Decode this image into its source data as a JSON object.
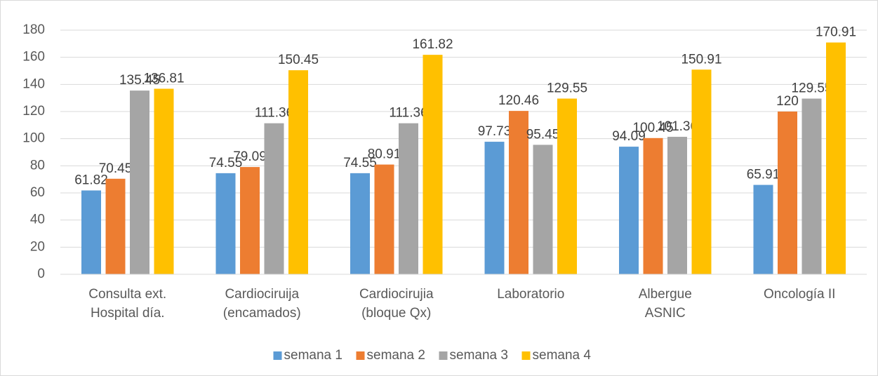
{
  "chart_data": {
    "type": "bar",
    "categories": [
      "Consulta ext.\nHospital día.",
      "Cardiociruija\n(encamados)",
      "Cardiocirujia\n(bloque Qx)",
      "Laboratorio",
      "Albergue\nASNIC",
      "Oncología II"
    ],
    "series": [
      {
        "name": "semana 1",
        "color": "#5b9bd5",
        "values": [
          61.82,
          74.55,
          74.55,
          97.73,
          94.09,
          65.91
        ]
      },
      {
        "name": "semana 2",
        "color": "#ed7d31",
        "values": [
          70.45,
          79.09,
          80.91,
          120.46,
          100.45,
          120
        ]
      },
      {
        "name": "semana 3",
        "color": "#a5a5a5",
        "values": [
          135.45,
          111.36,
          111.36,
          95.45,
          101.36,
          129.55
        ]
      },
      {
        "name": "semana 4",
        "color": "#ffc000",
        "values": [
          136.81,
          150.45,
          161.82,
          129.55,
          150.91,
          170.91
        ]
      }
    ],
    "ylim": [
      0,
      180
    ],
    "yticks": [
      0,
      20,
      40,
      60,
      80,
      100,
      120,
      140,
      160,
      180
    ],
    "grid": true,
    "legend": "bottom"
  }
}
